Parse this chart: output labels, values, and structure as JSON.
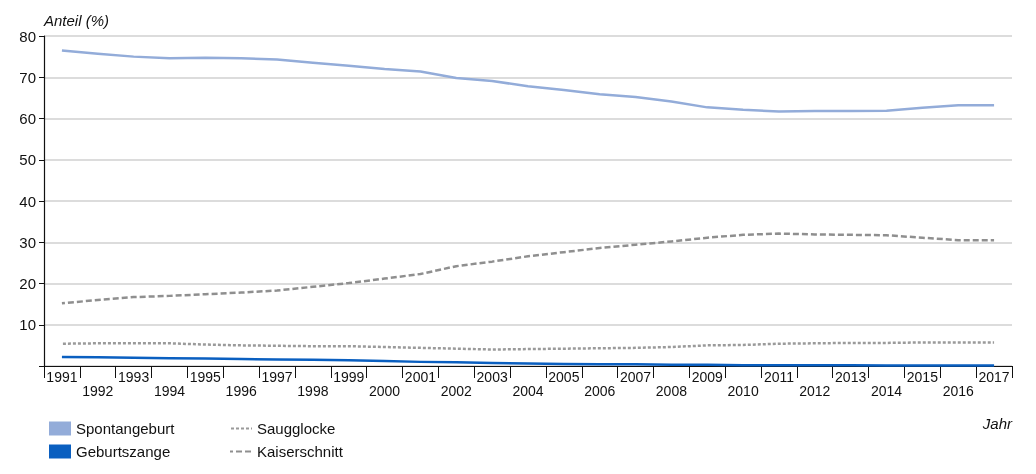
{
  "chart_data": {
    "type": "line",
    "ylabel": "Anteil (%)",
    "xlabel": "Jahr",
    "categories": [
      "1991",
      "1992",
      "1993",
      "1994",
      "1995",
      "1996",
      "1997",
      "1998",
      "1999",
      "2000",
      "2001",
      "2002",
      "2003",
      "2004",
      "2005",
      "2006",
      "2007",
      "2008",
      "2009",
      "2010",
      "2011",
      "2012",
      "2013",
      "2014",
      "2015",
      "2016",
      "2017"
    ],
    "series": [
      {
        "name": "Spontangeburt",
        "color": "#93acd9",
        "line_style": "solid",
        "values": [
          76.5,
          75.7,
          75.0,
          74.6,
          74.7,
          74.6,
          74.3,
          73.5,
          72.8,
          72.0,
          71.4,
          69.8,
          69.1,
          67.8,
          66.9,
          65.9,
          65.2,
          64.1,
          62.7,
          62.1,
          61.7,
          61.8,
          61.8,
          61.9,
          62.6,
          63.2,
          63.2
        ]
      },
      {
        "name": "Geburtszange",
        "color": "#0a5fc0",
        "line_style": "solid",
        "values": [
          2.2,
          2.1,
          2.0,
          1.9,
          1.8,
          1.7,
          1.6,
          1.5,
          1.4,
          1.2,
          1.0,
          0.9,
          0.7,
          0.6,
          0.5,
          0.4,
          0.4,
          0.3,
          0.3,
          0.2,
          0.2,
          0.2,
          0.2,
          0.1,
          0.1,
          0.1,
          0.1
        ]
      },
      {
        "name": "Saugglocke",
        "color": "#9a9a9a",
        "line_style": "dotted",
        "values": [
          5.4,
          5.5,
          5.5,
          5.5,
          5.2,
          5.0,
          4.9,
          4.8,
          4.8,
          4.6,
          4.4,
          4.2,
          4.0,
          4.1,
          4.2,
          4.3,
          4.4,
          4.6,
          5.0,
          5.1,
          5.4,
          5.5,
          5.6,
          5.6,
          5.7,
          5.7,
          5.7
        ]
      },
      {
        "name": "Kaiserschnitt",
        "color": "#8f8f8f",
        "line_style": "dashed",
        "values": [
          15.2,
          16.0,
          16.7,
          17.0,
          17.4,
          17.8,
          18.3,
          19.2,
          20.1,
          21.2,
          22.3,
          24.2,
          25.3,
          26.6,
          27.6,
          28.6,
          29.4,
          30.2,
          31.1,
          31.8,
          32.1,
          31.9,
          31.8,
          31.7,
          31.1,
          30.5,
          30.5
        ]
      }
    ],
    "ylim": [
      0,
      80
    ],
    "yticks": [
      {
        "value": 0,
        "label": null
      },
      10,
      20,
      30,
      40,
      50,
      60,
      70,
      80
    ],
    "grid": "y",
    "legend": "bottom left",
    "marker": "none"
  }
}
